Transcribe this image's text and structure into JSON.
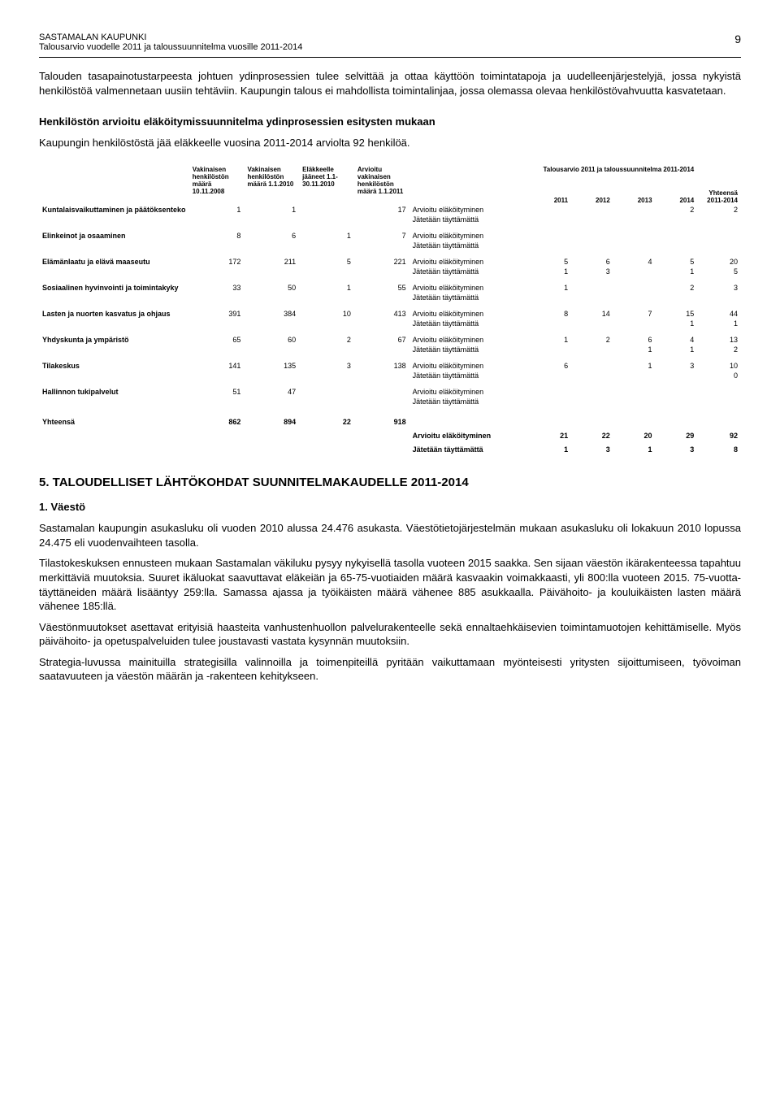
{
  "header": {
    "org": "SASTAMALAN KAUPUNKI",
    "subtitle": "Talousarvio vuodelle 2011 ja taloussuunnitelma vuosille 2011-2014",
    "page": "9"
  },
  "intro1": "Talouden tasapainotustarpeesta johtuen ydinprosessien tulee selvittää ja ottaa käyttöön toimintatapoja ja uudelleenjärjestelyjä, jossa nykyistä henkilöstöä valmennetaan uusiin tehtäviin. Kaupungin talous ei mahdollista toimintalinjaa, jossa olemassa olevaa henkilöstövahvuutta kasvatetaan.",
  "heading1": "Henkilöstön arvioitu eläköitymissuunnitelma  ydinprosessien esitysten mukaan",
  "intro2": "Kaupungin henkilöstöstä jää eläkkeelle  vuosina 2011-2014 arviolta 92 henkilöä.",
  "table": {
    "col_headers": {
      "c1": "Vakinaisen henkilöstön määrä 10.11.2008",
      "c2": "Vakinaisen henkilöstön määrä 1.1.2010",
      "c3": "Eläkkeelle jääneet 1.1- 30.11.2010",
      "c4": "Arvioitu vakinaisen henkilöstön määrä 1.1.2011",
      "plan_title": "Talousarvio 2011 ja taloussuunnitelma 2011-2014",
      "y2011": "2011",
      "y2012": "2012",
      "y2013": "2013",
      "y2014": "2014",
      "total_hdr": "Yhteensä 2011-2014"
    },
    "metric_labels": {
      "arv": "Arvioitu eläköityminen",
      "jat": "Jätetään täyttämättä"
    },
    "rows": [
      {
        "label": "Kuntalaisvaikuttaminen ja päätöksenteko",
        "v2008": "1",
        "v2010": "1",
        "retired": "",
        "v2011": "17",
        "arv": [
          "",
          "",
          "",
          "2",
          "2"
        ],
        "jat": [
          "",
          "",
          "",
          "",
          ""
        ]
      },
      {
        "label": "Elinkeinot ja osaaminen",
        "v2008": "8",
        "v2010": "6",
        "retired": "1",
        "v2011": "7",
        "arv": [
          "",
          "",
          "",
          "",
          ""
        ],
        "jat": [
          "",
          "",
          "",
          "",
          ""
        ]
      },
      {
        "label": "Elämänlaatu ja elävä maaseutu",
        "v2008": "172",
        "v2010": "211",
        "retired": "5",
        "v2011": "221",
        "arv": [
          "5",
          "6",
          "4",
          "5",
          "20"
        ],
        "jat": [
          "1",
          "3",
          "",
          "1",
          "5"
        ]
      },
      {
        "label": "Sosiaalinen hyvinvointi ja toimintakyky",
        "v2008": "33",
        "v2010": "50",
        "retired": "1",
        "v2011": "55",
        "arv": [
          "1",
          "",
          "",
          "2",
          "3"
        ],
        "jat": [
          "",
          "",
          "",
          "",
          ""
        ]
      },
      {
        "label": "Lasten ja nuorten kasvatus ja ohjaus",
        "v2008": "391",
        "v2010": "384",
        "retired": "10",
        "v2011": "413",
        "arv": [
          "8",
          "14",
          "7",
          "15",
          "44"
        ],
        "jat": [
          "",
          "",
          "",
          "1",
          "1"
        ]
      },
      {
        "label": "Yhdyskunta ja ympäristö",
        "v2008": "65",
        "v2010": "60",
        "retired": "2",
        "v2011": "67",
        "arv": [
          "1",
          "2",
          "6",
          "4",
          "13"
        ],
        "jat": [
          "",
          "",
          "1",
          "1",
          "2"
        ]
      },
      {
        "label": "Tilakeskus",
        "v2008": "141",
        "v2010": "135",
        "retired": "3",
        "v2011": "138",
        "arv": [
          "6",
          "",
          "1",
          "3",
          "10"
        ],
        "jat": [
          "",
          "",
          "",
          "",
          "0"
        ]
      },
      {
        "label": "Hallinnon tukipalvelut",
        "v2008": "51",
        "v2010": "47",
        "retired": "",
        "v2011": "",
        "arv": [
          "",
          "",
          "",
          "",
          ""
        ],
        "jat": [
          "",
          "",
          "",
          "",
          ""
        ]
      }
    ],
    "total": {
      "label": "Yhteensä",
      "v2008": "862",
      "v2010": "894",
      "retired": "22",
      "v2011": "918",
      "arv": [
        "21",
        "22",
        "20",
        "29",
        "92"
      ],
      "jat": [
        "1",
        "3",
        "1",
        "3",
        "8"
      ]
    }
  },
  "section5": {
    "title": "5. TALOUDELLISET LÄHTÖKOHDAT SUUNNITELMAKAUDELLE 2011-2014",
    "sub1": "1.  Väestö",
    "p1": "Sastamalan kaupungin asukasluku oli vuoden 2010 alussa 24.476 asukasta. Väestötietojärjestelmän mukaan asukasluku oli lokakuun 2010 lopussa 24.475 eli vuodenvaihteen tasolla.",
    "p2": "Tilastokeskuksen ennusteen mukaan Sastamalan väkiluku pysyy nykyisellä tasolla vuoteen 2015 saakka. Sen sijaan väestön ikärakenteessa tapahtuu merkittäviä muutoksia. Suuret ikäluokat saavuttavat eläkeiän ja 65-75-vuotiaiden määrä kasvaakin voimakkaasti, yli 800:lla vuoteen  2015. 75-vuotta- täyttäneiden määrä lisääntyy 259:lla.  Samassa ajassa ja työikäisten määrä vähenee 885 asukkaalla. Päivähoito- ja kouluikäisten lasten määrä vähenee 185:llä.",
    "p3": "Väestönmuutokset asettavat erityisiä haasteita vanhustenhuollon palvelurakenteelle sekä ennaltaehkäisevien toimintamuotojen kehittämiselle.  Myös päivähoito- ja opetuspalveluiden tulee joustavasti vastata kysynnän muutoksiin.",
    "p4": "Strategia-luvussa mainituilla strategisilla valinnoilla ja toimenpiteillä pyritään vaikuttamaan myönteisesti yritysten sijoittumiseen, työvoiman saatavuuteen ja väestön määrän ja -rakenteen kehitykseen."
  }
}
